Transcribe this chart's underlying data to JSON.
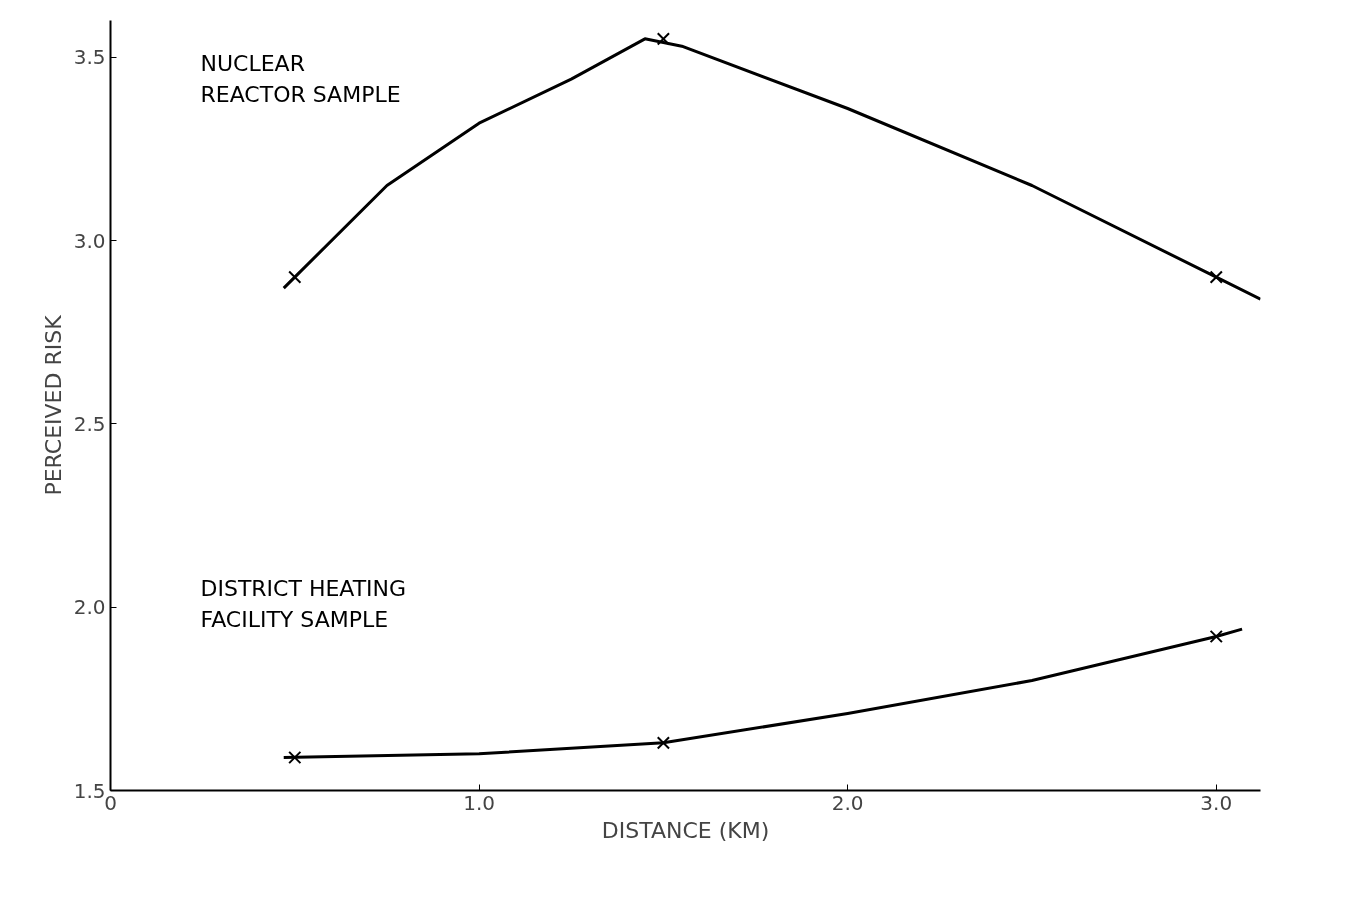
{
  "chart_data": {
    "type": "line",
    "xlabel": "DISTANCE (KM)",
    "ylabel": "PERCEIVED RISK",
    "xlim": [
      0,
      3.12
    ],
    "ylim": [
      1.5,
      3.6
    ],
    "xticks": [
      0,
      {
        "value": 1,
        "label": "1.0"
      },
      {
        "value": 2,
        "label": "2.0"
      },
      {
        "value": 3,
        "label": "3.0"
      }
    ],
    "yticks": [
      1.5,
      {
        "value": 2,
        "label": "2.0"
      },
      2.5,
      {
        "value": 3,
        "label": "3.0"
      },
      3.5
    ],
    "grid": false,
    "series": [
      {
        "color": "#000000",
        "marker": "none",
        "x": [
          0.47,
          0.75,
          1.0,
          1.25,
          1.45,
          1.55,
          2.0,
          2.5,
          3.0,
          3.12
        ],
        "values": [
          2.87,
          3.15,
          3.32,
          3.44,
          3.55,
          3.53,
          3.36,
          3.15,
          2.9,
          2.84
        ]
      },
      {
        "type": "scatter",
        "color": "#000000",
        "marker": "cross",
        "x": [
          0.5,
          1.5,
          3.0
        ],
        "values": [
          2.9,
          3.55,
          2.9
        ]
      },
      {
        "color": "#000000",
        "marker": "none",
        "x": [
          0.47,
          1.0,
          1.5,
          2.0,
          2.5,
          3.0,
          3.07
        ],
        "values": [
          1.59,
          1.6,
          1.63,
          1.71,
          1.8,
          1.92,
          1.94
        ]
      },
      {
        "type": "scatter",
        "color": "#000000",
        "marker": "cross",
        "x": [
          0.5,
          1.5,
          3.0
        ],
        "values": [
          1.59,
          1.63,
          1.92
        ]
      }
    ],
    "annotations": [
      "NUCLEAR\nREACTOR SAMPLE",
      "DISTRICT HEATING\nFACILITY SAMPLE"
    ]
  }
}
